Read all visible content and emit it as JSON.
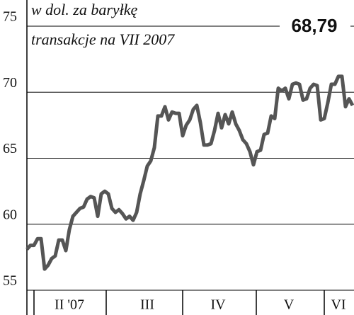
{
  "chart_data": {
    "type": "line",
    "title": "w dol. za baryłkę",
    "subtitle": "transakcje na VII 2007",
    "annotation": "68,79",
    "categories": [
      null,
      null,
      null,
      null,
      null,
      null,
      null,
      null,
      null,
      null,
      null,
      null,
      "II '07",
      null,
      null,
      null,
      null,
      null,
      null,
      null,
      null,
      null,
      null,
      null,
      null,
      null,
      null,
      null,
      null,
      null,
      null,
      null,
      null,
      null,
      "III",
      null,
      null,
      null,
      null,
      null,
      null,
      null,
      null,
      null,
      null,
      null,
      null,
      null,
      null,
      null,
      null,
      null,
      null,
      null,
      "IV",
      null,
      null,
      null,
      null,
      null,
      null,
      null,
      null,
      null,
      null,
      null,
      null,
      null,
      null,
      null,
      null,
      null,
      null,
      null,
      "V",
      null,
      null,
      null,
      null,
      null,
      null,
      null,
      null,
      null,
      null,
      null,
      null,
      null,
      "VI",
      null,
      null,
      null,
      null
    ],
    "series": [
      {
        "color": "#555555",
        "values": [
          58.1,
          58.4,
          58.4,
          58.9,
          58.9,
          56.6,
          56.9,
          57.4,
          57.6,
          58.8,
          58.8,
          58.0,
          59.6,
          60.6,
          60.9,
          61.2,
          61.3,
          61.9,
          62.1,
          62.0,
          60.6,
          62.3,
          62.5,
          62.3,
          61.2,
          60.9,
          61.1,
          60.8,
          60.4,
          60.6,
          60.3,
          60.9,
          62.3,
          63.3,
          64.4,
          64.8,
          65.8,
          68.2,
          68.2,
          68.9,
          67.9,
          68.5,
          68.4,
          68.4,
          66.7,
          67.5,
          67.9,
          68.7,
          69.0,
          67.7,
          66.0,
          66.0,
          66.1,
          67.1,
          68.4,
          67.3,
          68.3,
          67.6,
          68.5,
          67.6,
          67.1,
          66.4,
          66.1,
          65.5,
          64.5,
          65.5,
          65.6,
          66.8,
          66.9,
          68.2,
          68.0,
          70.3,
          70.1,
          70.3,
          69.5,
          70.6,
          70.7,
          70.6,
          69.4,
          69.5,
          70.3,
          70.6,
          70.5,
          67.9,
          68.0,
          69.2,
          70.6,
          70.6,
          71.2,
          71.2,
          68.9,
          69.5,
          69.0
        ]
      }
    ],
    "ylim": [
      55,
      75
    ],
    "yticks": [
      55,
      60,
      65,
      70,
      75
    ],
    "grid": true
  }
}
